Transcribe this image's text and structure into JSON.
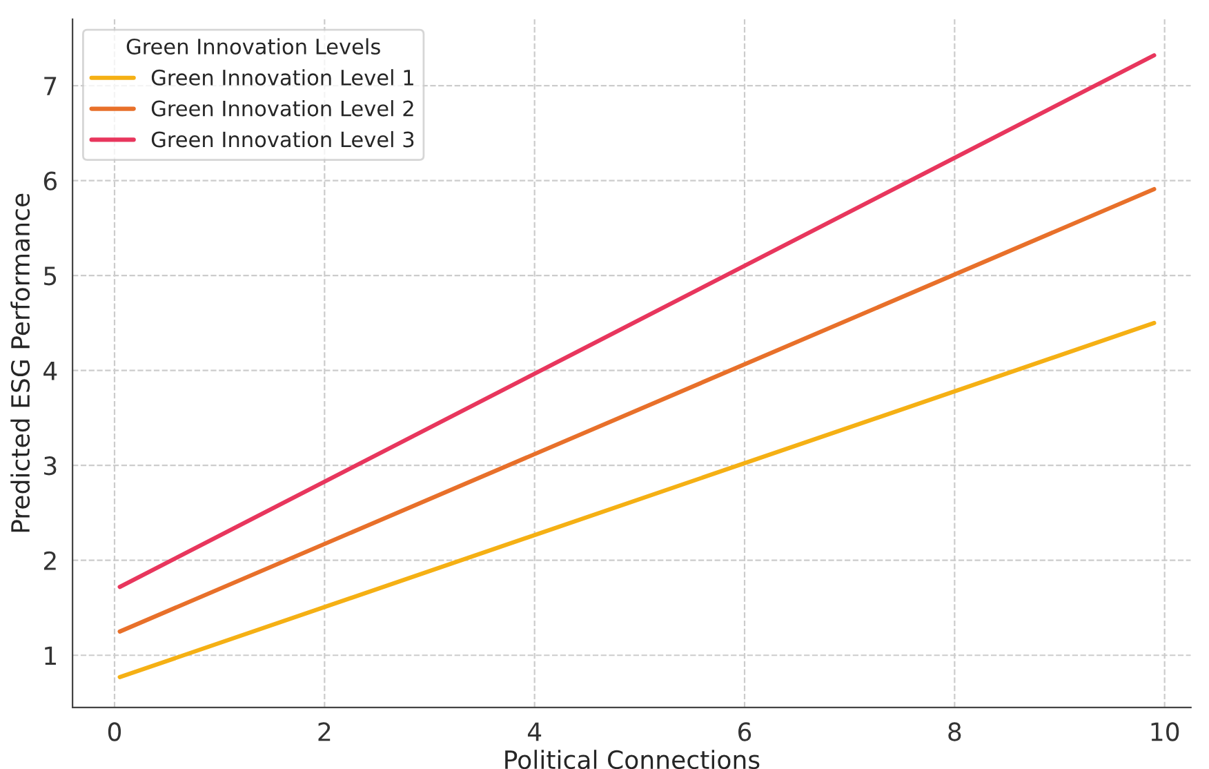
{
  "chart_data": {
    "type": "line",
    "xlabel": "Political Connections",
    "ylabel": "Predicted ESG Performance",
    "legend_title": "Green Innovation Levels",
    "x": [
      0.05,
      9.9
    ],
    "series": [
      {
        "name": "Green Innovation Level 1",
        "color": "#f5b014",
        "values": [
          0.77,
          4.5
        ]
      },
      {
        "name": "Green Innovation Level 2",
        "color": "#e8702a",
        "values": [
          1.25,
          5.91
        ]
      },
      {
        "name": "Green Innovation Level 3",
        "color": "#e8365d",
        "values": [
          1.72,
          7.32
        ]
      }
    ],
    "xlim": [
      -0.4,
      10.25
    ],
    "ylim": [
      0.45,
      7.7
    ],
    "xticks": [
      0,
      2,
      4,
      6,
      8,
      10
    ],
    "yticks": [
      1,
      2,
      3,
      4,
      5,
      6,
      7
    ],
    "grid": true,
    "legend": "top left",
    "marker": "none",
    "line_style": "solid"
  }
}
